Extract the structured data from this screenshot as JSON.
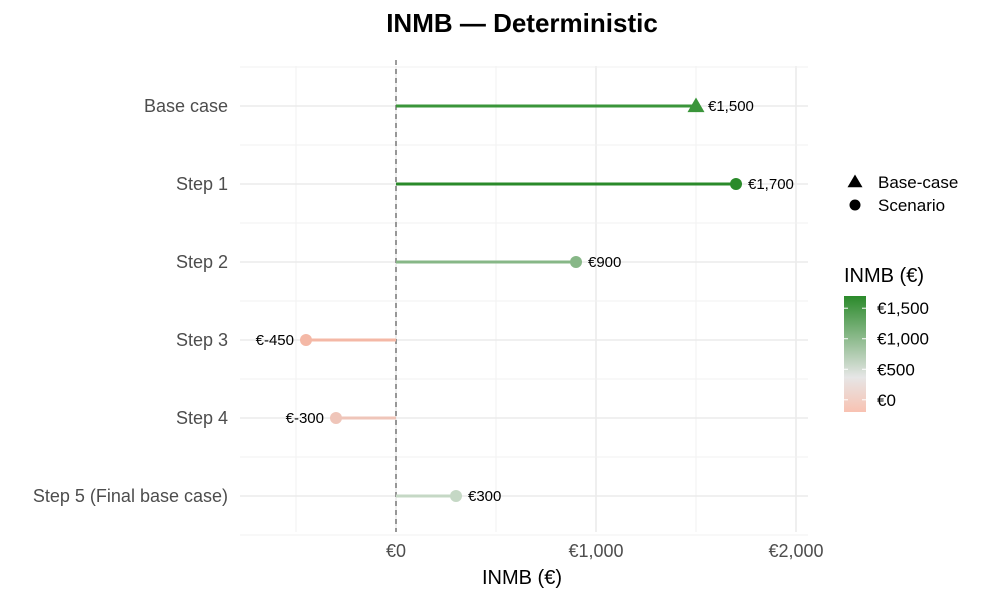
{
  "chart_data": {
    "type": "lollipop",
    "title": "INMB — Deterministic",
    "xlabel": "INMB (€)",
    "ylabel": "",
    "xlim": [
      -780,
      2060
    ],
    "x_ticks": [
      {
        "value": 0,
        "label": "€0"
      },
      {
        "value": 1000,
        "label": "€1,000"
      },
      {
        "value": 2000,
        "label": "€2,000"
      }
    ],
    "grid": true,
    "points": [
      {
        "category": "Base case",
        "value": 1500,
        "label": "€1,500",
        "type": "Base-case",
        "color": "#3a953a"
      },
      {
        "category": "Step 1",
        "value": 1700,
        "label": "€1,700",
        "type": "Scenario",
        "color": "#2a8a2a"
      },
      {
        "category": "Step 2",
        "value": 900,
        "label": "€900",
        "type": "Scenario",
        "color": "#87b787"
      },
      {
        "category": "Step 3",
        "value": -450,
        "label": "€-450",
        "type": "Scenario",
        "color": "#f4b8a6"
      },
      {
        "category": "Step 4",
        "value": -300,
        "label": "€-300",
        "type": "Scenario",
        "color": "#efc5b9"
      },
      {
        "category": "Step 5 (Final base case)",
        "value": 300,
        "label": "€300",
        "type": "Scenario",
        "color": "#c5d8c5"
      }
    ],
    "shape_legend": [
      {
        "label": "Base-case",
        "shape": "triangle"
      },
      {
        "label": "Scenario",
        "shape": "circle"
      }
    ],
    "color_legend": {
      "title": "INMB (€)",
      "placement": "right",
      "range": [
        -200,
        1700
      ],
      "colors": {
        "low": "#f8c2b2",
        "mid": "#e6e6e6",
        "high": "#2b8a2b"
      },
      "ticks": [
        {
          "value": 1500,
          "label": "€1,500"
        },
        {
          "value": 1000,
          "label": "€1,000"
        },
        {
          "value": 500,
          "label": "€500"
        },
        {
          "value": 0,
          "label": "€0"
        }
      ]
    },
    "zero_line": "dashed"
  }
}
